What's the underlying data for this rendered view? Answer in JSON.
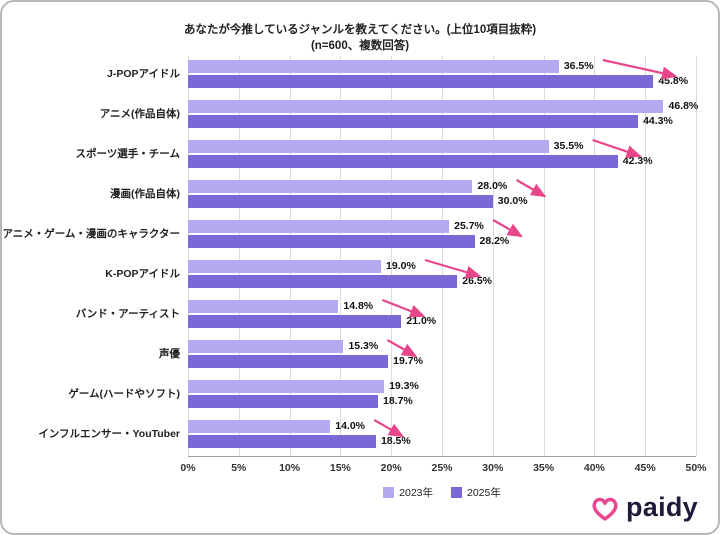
{
  "chart_data": {
    "type": "bar",
    "orientation": "horizontal",
    "title": "あなたが今推しているジャンルを教えてください。(上位10項目抜粋)",
    "subtitle": "(n=600、複数回答)",
    "categories": [
      "J-POPアイドル",
      "アニメ(作品自体)",
      "スポーツ選手・チーム",
      "漫画(作品自体)",
      "アニメ・ゲーム・漫画のキャラクター",
      "K-POPアイドル",
      "バンド・アーティスト",
      "声優",
      "ゲーム(ハードやソフト)",
      "インフルエンサー・YouTuber"
    ],
    "series": [
      {
        "name": "2023年",
        "color": "#b4a8ee",
        "values": [
          36.5,
          46.8,
          35.5,
          28.0,
          25.7,
          19.0,
          14.8,
          15.3,
          19.3,
          14.0
        ]
      },
      {
        "name": "2025年",
        "color": "#7b68d6",
        "values": [
          45.8,
          44.3,
          42.3,
          30.0,
          28.2,
          26.5,
          21.0,
          19.7,
          18.7,
          18.5
        ]
      }
    ],
    "xlim": [
      0,
      50
    ],
    "x_tick_step": 5,
    "x_tick_labels": [
      "0%",
      "5%",
      "10%",
      "15%",
      "20%",
      "25%",
      "30%",
      "35%",
      "40%",
      "45%",
      "50%"
    ],
    "value_suffix": "%",
    "grid": true,
    "legend_position": "bottom",
    "increase_arrow_rows": [
      0,
      2,
      3,
      4,
      5,
      6,
      7,
      9
    ],
    "arrow_color": "#e8468b"
  },
  "logo": {
    "text": "paidy",
    "color": "#1e1c3c",
    "heart_color": "#e9478f"
  }
}
